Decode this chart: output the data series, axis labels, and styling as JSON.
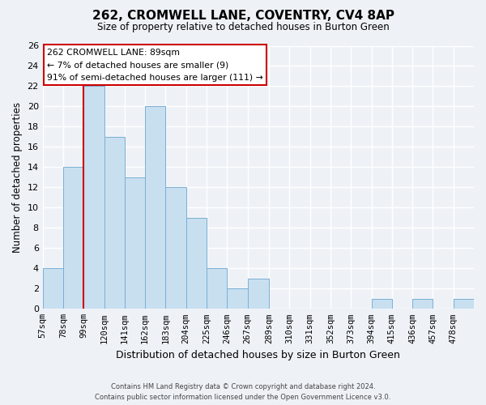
{
  "title": "262, CROMWELL LANE, COVENTRY, CV4 8AP",
  "subtitle": "Size of property relative to detached houses in Burton Green",
  "xlabel": "Distribution of detached houses by size in Burton Green",
  "ylabel": "Number of detached properties",
  "bar_color": "#c8dff0",
  "bar_edge_color": "#7bafd4",
  "vline_color": "#cc0000",
  "vline_x_bin_index": 1,
  "bins": [
    57,
    78,
    99,
    120,
    141,
    162,
    183,
    204,
    225,
    246,
    267,
    289,
    310,
    331,
    352,
    373,
    394,
    415,
    436,
    457,
    478,
    499
  ],
  "bin_labels": [
    "57sqm",
    "78sqm",
    "99sqm",
    "120sqm",
    "141sqm",
    "162sqm",
    "183sqm",
    "204sqm",
    "225sqm",
    "246sqm",
    "267sqm",
    "289sqm",
    "310sqm",
    "331sqm",
    "352sqm",
    "373sqm",
    "394sqm",
    "415sqm",
    "436sqm",
    "457sqm",
    "478sqm"
  ],
  "counts": [
    4,
    14,
    22,
    17,
    13,
    20,
    12,
    9,
    4,
    2,
    3,
    0,
    0,
    0,
    0,
    0,
    1,
    0,
    1,
    0,
    1
  ],
  "ylim": [
    0,
    26
  ],
  "yticks": [
    0,
    2,
    4,
    6,
    8,
    10,
    12,
    14,
    16,
    18,
    20,
    22,
    24,
    26
  ],
  "annotation_line1": "262 CROMWELL LANE: 89sqm",
  "annotation_line2": "← 7% of detached houses are smaller (9)",
  "annotation_line3": "91% of semi-detached houses are larger (111) →",
  "annotation_box_color": "#ffffff",
  "annotation_box_edge": "#cc0000",
  "footer_line1": "Contains HM Land Registry data © Crown copyright and database right 2024.",
  "footer_line2": "Contains public sector information licensed under the Open Government Licence v3.0.",
  "background_color": "#eef2f7",
  "grid_color": "#ffffff",
  "fig_width": 6.0,
  "fig_height": 5.0,
  "dpi": 100
}
